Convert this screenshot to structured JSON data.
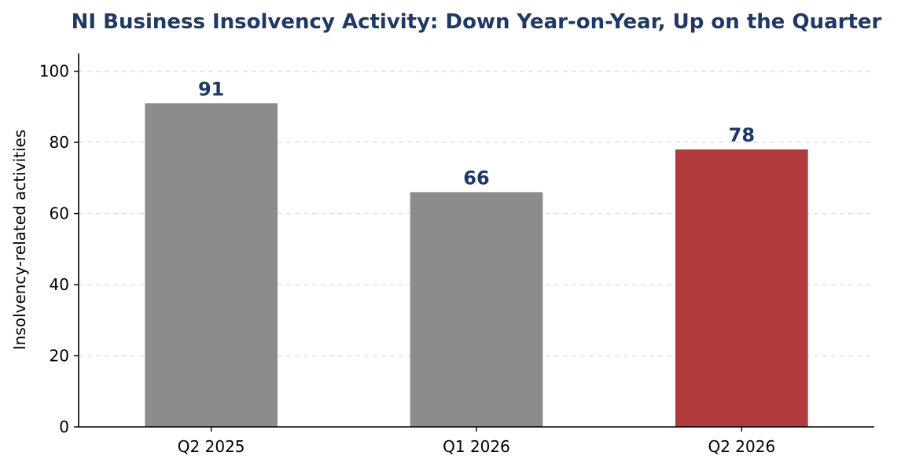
{
  "chart_data": {
    "type": "bar",
    "title": "NI Business Insolvency Activity: Down Year-on-Year, Up on the Quarter",
    "xlabel": "",
    "ylabel": "Insolvency-related activities",
    "categories": [
      "Q2 2025",
      "Q1 2026",
      "Q2 2026"
    ],
    "values": [
      91,
      66,
      78
    ],
    "data_labels": [
      "91",
      "66",
      "78"
    ],
    "ylim": [
      0,
      105
    ],
    "yticks": [
      0,
      20,
      40,
      60,
      80,
      100
    ],
    "grid": "y-dashed",
    "legend": "none",
    "colors": {
      "bars": [
        "#8c8c8c",
        "#8c8c8c",
        "#b03a3c"
      ],
      "title": "#1f3864",
      "data_labels": "#1f3864",
      "grid": "#e0e0e0",
      "axis": "#000000"
    }
  }
}
